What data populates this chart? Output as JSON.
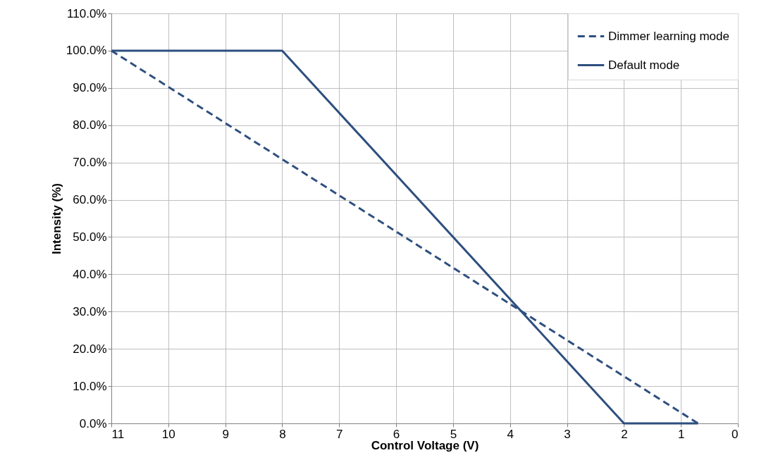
{
  "chart_data": {
    "type": "line",
    "xlabel": "Control Voltage (V)",
    "ylabel": "Intensity (%)",
    "xlim": [
      11,
      0
    ],
    "xticks": [
      11,
      10,
      9,
      8,
      7,
      6,
      5,
      4,
      3,
      2,
      1,
      0
    ],
    "ylim": [
      0,
      110
    ],
    "yticks": [
      {
        "value": 0,
        "label": "0.0%"
      },
      {
        "value": 10,
        "label": "10.0%"
      },
      {
        "value": 20,
        "label": "20.0%"
      },
      {
        "value": 30,
        "label": "30.0%"
      },
      {
        "value": 40,
        "label": "40.0%"
      },
      {
        "value": 50,
        "label": "50.0%"
      },
      {
        "value": 60,
        "label": "60.0%"
      },
      {
        "value": 70,
        "label": "70.0%"
      },
      {
        "value": 80,
        "label": "80.0%"
      },
      {
        "value": 90,
        "label": "90.0%"
      },
      {
        "value": 100,
        "label": "100.0%"
      },
      {
        "value": 110,
        "label": "110.0%"
      }
    ],
    "grid": true,
    "legend": "top right",
    "marker": "none",
    "series": [
      {
        "name": "Dimmer learning mode",
        "color": "#2e4f7f",
        "line_style": "dashed",
        "x": [
          11,
          0.7
        ],
        "values": [
          100,
          0
        ]
      },
      {
        "name": "Default mode",
        "color": "#2e4f7f",
        "line_style": "solid",
        "x": [
          11,
          8,
          2,
          0.7
        ],
        "values": [
          100,
          100,
          0,
          0
        ]
      }
    ]
  }
}
